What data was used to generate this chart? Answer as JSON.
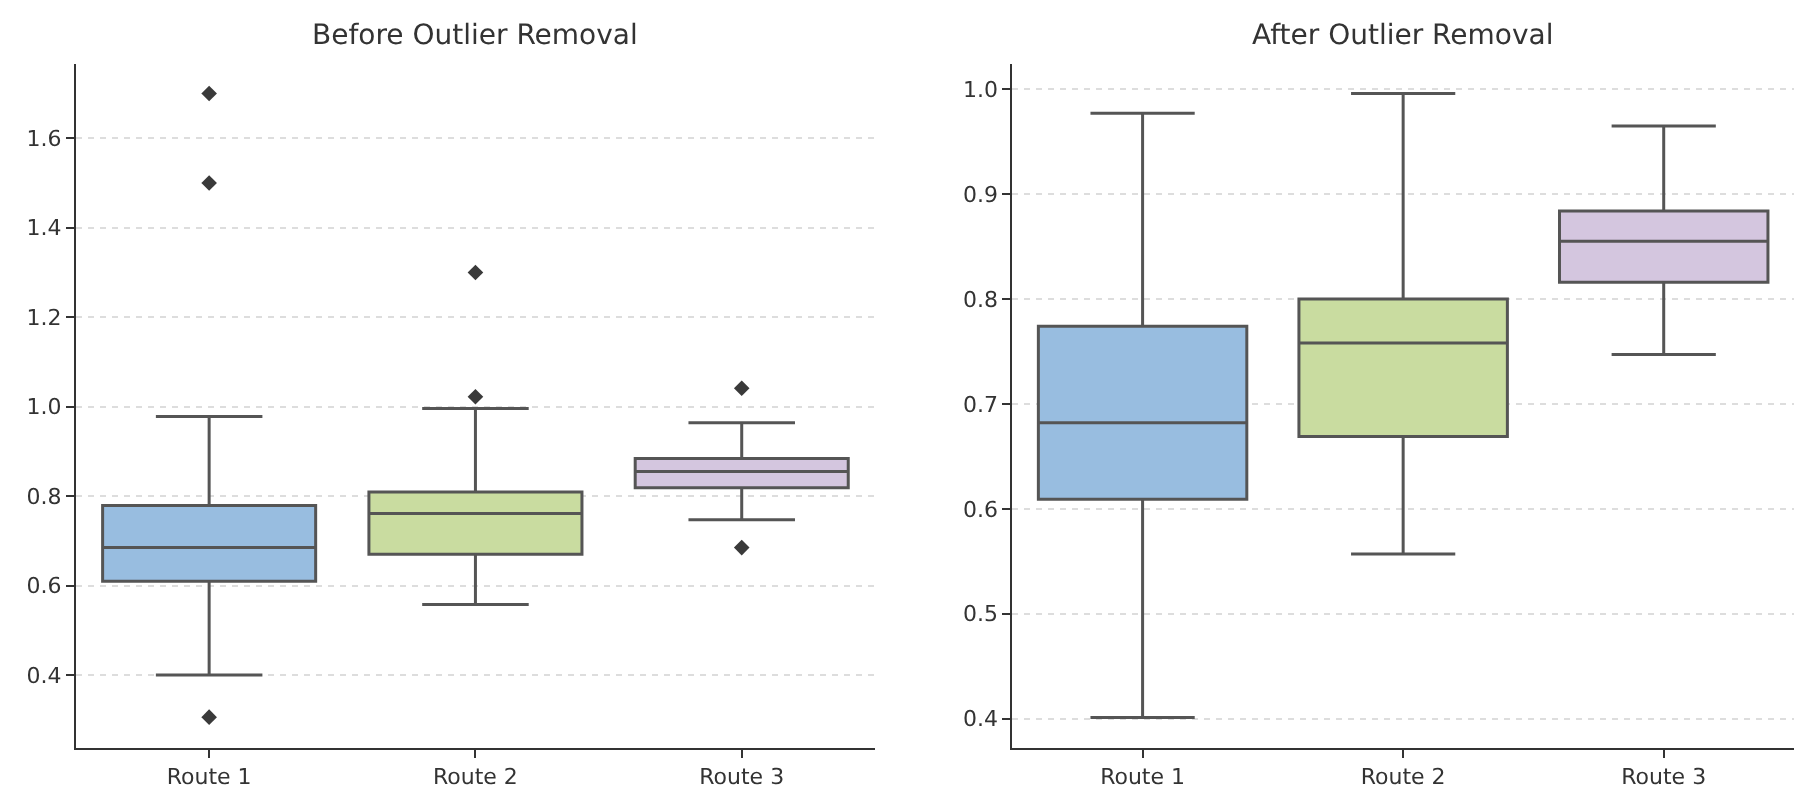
{
  "chart_data": [
    {
      "type": "box",
      "title": "Before Outlier Removal",
      "categories": [
        "Route 1",
        "Route 2",
        "Route 3"
      ],
      "colors": [
        "#98bde0",
        "#c9dca0",
        "#d4c6df"
      ],
      "boxes": [
        {
          "low": 0.4,
          "q1": 0.61,
          "median": 0.685,
          "q3": 0.779,
          "high": 0.978,
          "outliers": [
            1.7,
            1.5,
            0.306
          ]
        },
        {
          "low": 0.558,
          "q1": 0.67,
          "median": 0.761,
          "q3": 0.809,
          "high": 0.996,
          "outliers": [
            1.3,
            1.022
          ]
        },
        {
          "low": 0.747,
          "q1": 0.819,
          "median": 0.855,
          "q3": 0.884,
          "high": 0.964,
          "outliers": [
            1.041,
            0.685
          ]
        }
      ],
      "ylim": [
        0.237,
        1.766
      ],
      "yticks": [
        0.4,
        0.6,
        0.8,
        {
          "value": 1,
          "label": "1.0"
        },
        1.2,
        1.4,
        1.6
      ],
      "grid": "y",
      "marker": "diamond",
      "legend": false
    },
    {
      "type": "box",
      "title": "After Outlier Removal",
      "categories": [
        "Route 1",
        "Route 2",
        "Route 3"
      ],
      "colors": [
        "#98bde0",
        "#c9dca0",
        "#d4c6df"
      ],
      "boxes": [
        {
          "low": 0.401,
          "q1": 0.609,
          "median": 0.682,
          "q3": 0.774,
          "high": 0.977
        },
        {
          "low": 0.557,
          "q1": 0.669,
          "median": 0.758,
          "q3": 0.8,
          "high": 0.996
        },
        {
          "low": 0.747,
          "q1": 0.816,
          "median": 0.855,
          "q3": 0.884,
          "high": 0.965
        }
      ],
      "ylim": [
        0.372,
        1.024
      ],
      "yticks": [
        0.4,
        0.5,
        0.6,
        0.7,
        0.8,
        0.9,
        {
          "value": 1,
          "label": "1.0"
        }
      ],
      "grid": "y",
      "legend": false
    }
  ]
}
